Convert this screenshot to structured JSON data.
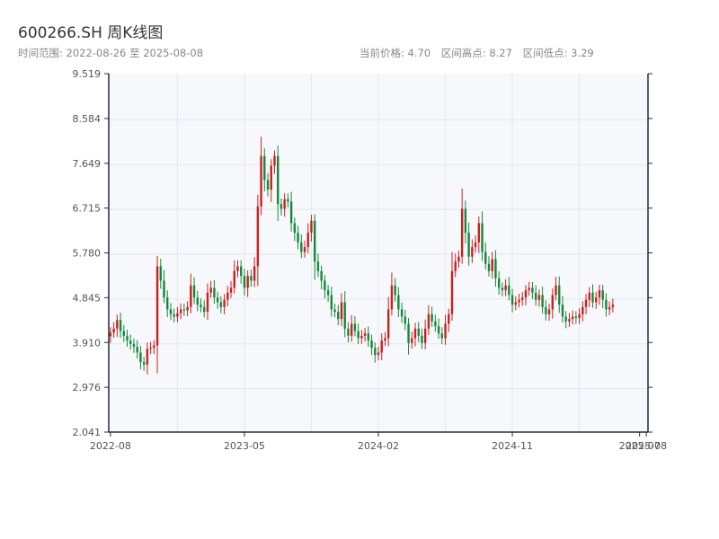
{
  "header": {
    "title": "600266.SH 周K线图",
    "range_label": "时间范围:",
    "range_start": "2022-08-26",
    "range_sep": "至",
    "range_end": "2025-08-08",
    "price_label": "当前价格:",
    "price_value": "4.70",
    "high_label": "区间高点:",
    "high_value": "8.27",
    "low_label": "区间低点:",
    "low_value": "3.29"
  },
  "colors": {
    "up": "#cc1f1f",
    "down": "#16883a",
    "plot_bg": "#f6f8fb",
    "grid": "#e3e7ee",
    "axis": "#1f2d3d"
  },
  "chart_data": {
    "type": "candlestick",
    "title": "600266.SH 周K线图",
    "ylim": [
      2.041,
      9.519
    ],
    "y_ticks": [
      "9.519",
      "8.584",
      "7.649",
      "6.715",
      "5.780",
      "4.845",
      "3.910",
      "2.976",
      "2.041"
    ],
    "x_ticks": [
      "2022-08",
      "2023-05",
      "2024-02",
      "2024-11",
      "2025-07",
      "2025-08"
    ],
    "x_tick_weeks": [
      0,
      40,
      80,
      120,
      158,
      160
    ],
    "x_range": [
      0,
      160
    ],
    "grid": true,
    "close_series_weekly": [
      4.12,
      4.2,
      4.38,
      4.15,
      4.05,
      3.95,
      3.88,
      3.82,
      3.7,
      3.5,
      3.45,
      3.78,
      3.8,
      3.85,
      5.5,
      5.2,
      4.85,
      4.6,
      4.5,
      4.45,
      4.52,
      4.6,
      4.58,
      4.65,
      5.1,
      4.85,
      4.7,
      4.65,
      4.55,
      4.95,
      5.05,
      4.85,
      4.75,
      4.65,
      4.8,
      4.95,
      5.05,
      5.4,
      5.5,
      5.3,
      5.05,
      5.3,
      5.2,
      5.5,
      6.75,
      7.8,
      7.3,
      7.1,
      7.6,
      7.8,
      6.8,
      6.7,
      6.9,
      6.85,
      6.4,
      6.2,
      6.0,
      5.8,
      5.9,
      6.2,
      6.45,
      5.6,
      5.4,
      5.2,
      5.0,
      4.9,
      4.6,
      4.55,
      4.4,
      4.75,
      4.2,
      4.05,
      4.3,
      4.15,
      4.0,
      4.05,
      4.1,
      3.95,
      3.8,
      3.65,
      3.7,
      3.95,
      4.0,
      4.6,
      5.1,
      4.9,
      4.6,
      4.45,
      4.3,
      3.9,
      4.0,
      4.2,
      4.05,
      3.9,
      4.2,
      4.5,
      4.35,
      4.25,
      4.1,
      4.0,
      4.3,
      4.5,
      5.4,
      5.6,
      5.7,
      6.7,
      6.2,
      5.7,
      5.9,
      6.0,
      6.4,
      5.8,
      5.55,
      5.4,
      5.65,
      5.25,
      5.05,
      5.0,
      5.1,
      4.9,
      4.7,
      4.75,
      4.8,
      4.85,
      5.0,
      5.05,
      4.95,
      4.8,
      4.9,
      4.65,
      4.5,
      4.6,
      4.9,
      5.1,
      4.7,
      4.45,
      4.35,
      4.4,
      4.45,
      4.42,
      4.5,
      4.65,
      4.8,
      4.95,
      4.75,
      4.85,
      5.0,
      4.8,
      4.6,
      4.65,
      4.7
    ],
    "legend": "none"
  }
}
